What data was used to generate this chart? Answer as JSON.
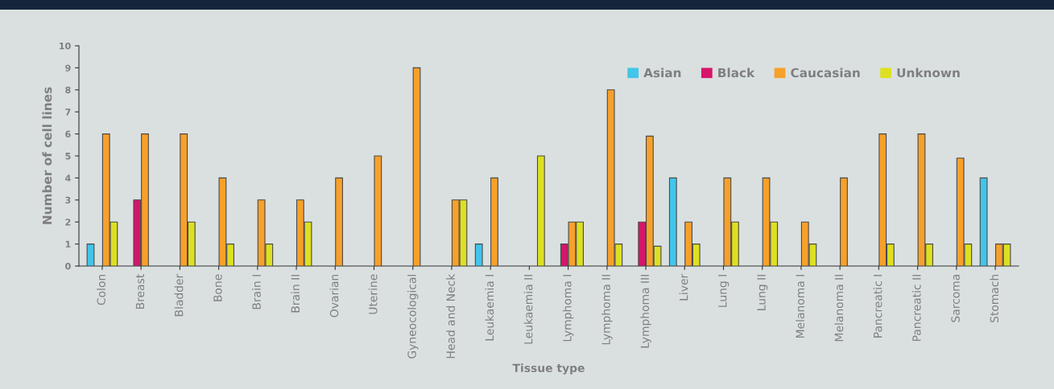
{
  "chart_data": {
    "type": "bar",
    "xlabel": "Tissue type",
    "ylabel": "Number of cell lines",
    "categories": [
      "Colon",
      "Breast",
      "Bladder",
      "Bone",
      "Brain I",
      "Brain II",
      "Ovarian",
      "Uterine",
      "Gyneocological",
      "Head and Neck",
      "Leukaemia I",
      "Leukaemia II",
      "Lymphoma I",
      "Lymphoma II",
      "Lymphoma III",
      "Liver",
      "Lung I",
      "Lung II",
      "Melanoma I",
      "Melanoma II",
      "Pancreatic I",
      "Pancreatic II",
      "Sarcoma",
      "Stomach"
    ],
    "series": [
      {
        "name": "Asian",
        "color": "#41c5ea",
        "values": [
          1,
          null,
          null,
          null,
          null,
          null,
          null,
          null,
          null,
          null,
          1,
          null,
          null,
          null,
          null,
          4,
          null,
          null,
          null,
          null,
          null,
          null,
          null,
          4
        ]
      },
      {
        "name": "Black",
        "color": "#d6156b",
        "values": [
          null,
          3,
          null,
          null,
          null,
          null,
          null,
          null,
          null,
          null,
          null,
          null,
          1,
          null,
          2,
          null,
          null,
          null,
          null,
          null,
          null,
          null,
          null,
          null
        ]
      },
      {
        "name": "Caucasian",
        "color": "#f7a02a",
        "values": [
          6,
          6,
          6,
          4,
          3,
          3,
          4,
          5,
          9,
          3,
          4,
          null,
          2,
          8,
          5.9,
          2,
          4,
          4,
          2,
          4,
          6,
          6,
          4.9,
          1
        ]
      },
      {
        "name": "Unknown",
        "color": "#dde021",
        "values": [
          2,
          null,
          2,
          1,
          1,
          2,
          null,
          null,
          null,
          3,
          null,
          5,
          2,
          1,
          0.9,
          1,
          2,
          2,
          1,
          null,
          1,
          1,
          1,
          1
        ]
      }
    ],
    "ylim": [
      0,
      10
    ],
    "yticks": [
      0,
      1,
      2,
      3,
      4,
      5,
      6,
      7,
      8,
      9,
      10
    ],
    "grid": false,
    "legend": "top right"
  }
}
